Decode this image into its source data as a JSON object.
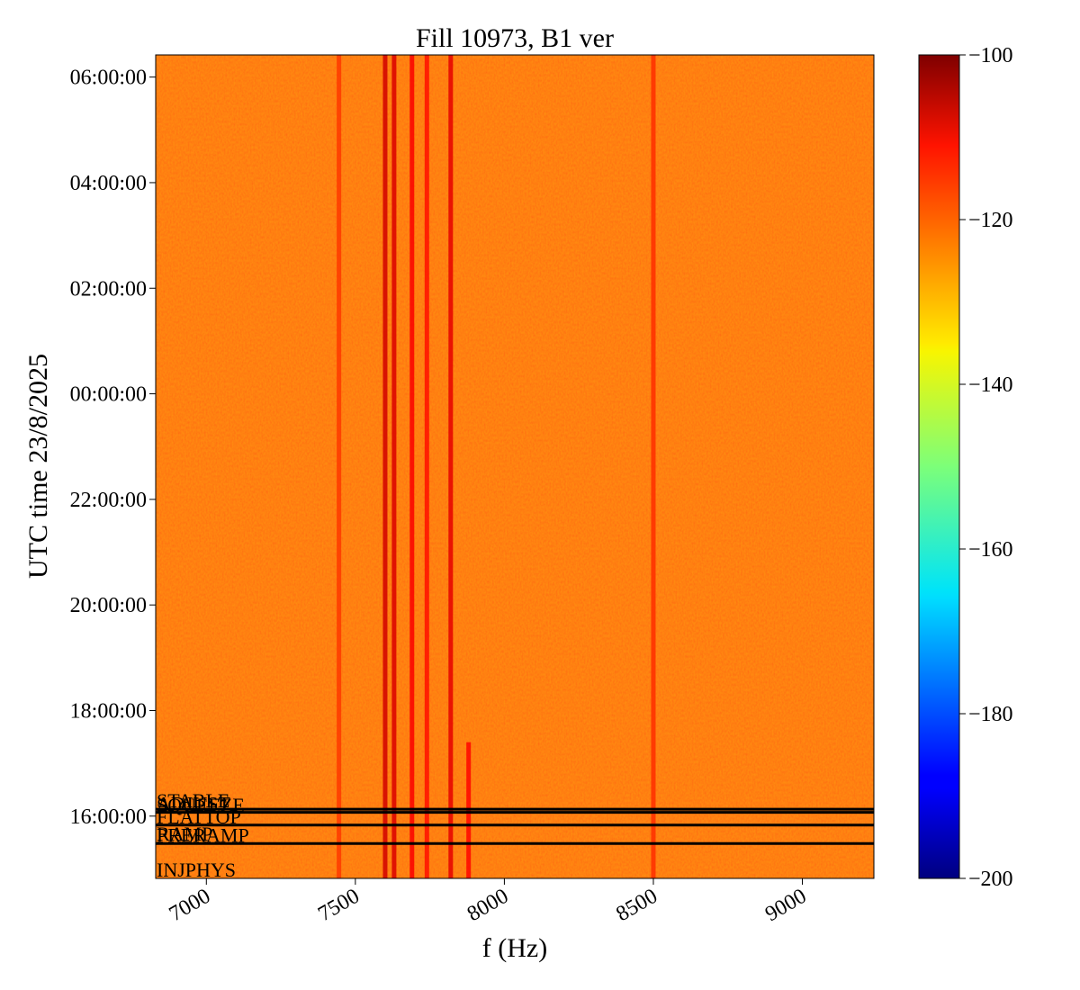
{
  "chart_data": {
    "type": "heatmap",
    "title": "Fill 10973, B1 ver",
    "xlabel": "f (Hz)",
    "ylabel": "UTC time 23/8/2025",
    "xlim": [
      6830,
      9240
    ],
    "x_ticks": [
      {
        "value": 7000,
        "label": "7000"
      },
      {
        "value": 7500,
        "label": "7500"
      },
      {
        "value": 8000,
        "label": "8000"
      },
      {
        "value": 8500,
        "label": "8500"
      },
      {
        "value": 9000,
        "label": "9000"
      }
    ],
    "ylim_hours": [
      14.82,
      30.42
    ],
    "y_ticks": [
      {
        "value": 16,
        "label": "16:00:00"
      },
      {
        "value": 18,
        "label": "18:00:00"
      },
      {
        "value": 20,
        "label": "20:00:00"
      },
      {
        "value": 22,
        "label": "22:00:00"
      },
      {
        "value": 24,
        "label": "00:00:00"
      },
      {
        "value": 26,
        "label": "02:00:00"
      },
      {
        "value": 28,
        "label": "04:00:00"
      },
      {
        "value": 30,
        "label": "06:00:00"
      }
    ],
    "colorbar": {
      "colormap": "jet",
      "range": [
        -200,
        -100
      ],
      "ticks": [
        {
          "value": -100,
          "label": "−100"
        },
        {
          "value": -120,
          "label": "−120"
        },
        {
          "value": -140,
          "label": "−140"
        },
        {
          "value": -160,
          "label": "−160"
        },
        {
          "value": -180,
          "label": "−180"
        },
        {
          "value": -200,
          "label": "−200"
        }
      ]
    },
    "background_level": -122,
    "lines": [
      {
        "freq": 7445,
        "level": -118,
        "until_hour": 30.42
      },
      {
        "freq": 7600,
        "level": -108,
        "until_hour": 30.42
      },
      {
        "freq": 7630,
        "level": -109,
        "until_hour": 30.42
      },
      {
        "freq": 7690,
        "level": -112,
        "until_hour": 30.42
      },
      {
        "freq": 7740,
        "level": -114,
        "until_hour": 30.42
      },
      {
        "freq": 7820,
        "level": -110,
        "until_hour": 30.42
      },
      {
        "freq": 7880,
        "level": -113,
        "until_hour": 17.4
      },
      {
        "freq": 8500,
        "level": -117,
        "until_hour": 30.42
      }
    ],
    "beam_modes": [
      {
        "label": "INJPHYS",
        "hour": 14.82
      },
      {
        "label": "PRERAMP",
        "hour": 15.48
      },
      {
        "label": "RAMP",
        "hour": 15.5
      },
      {
        "label": "FLATTOP",
        "hour": 15.83
      },
      {
        "label": "SQUEEZE",
        "hour": 16.05
      },
      {
        "label": "ADJUST",
        "hour": 16.07
      },
      {
        "label": "STABLE",
        "hour": 16.13
      }
    ],
    "colors": {
      "marker_line": "#000000",
      "frame": "#000000"
    }
  }
}
